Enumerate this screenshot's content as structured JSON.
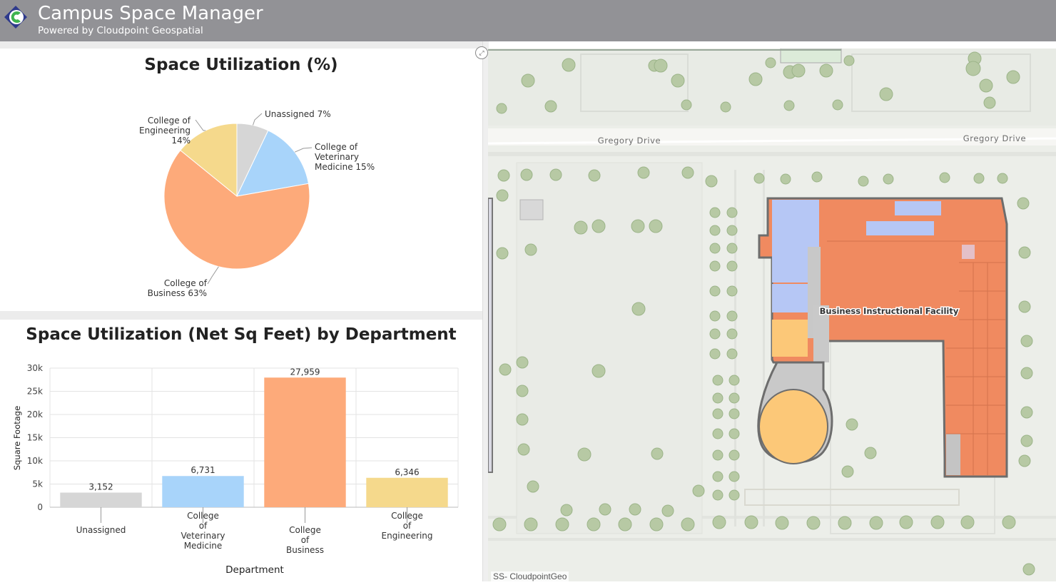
{
  "app": {
    "title": "Campus Space Manager",
    "subtitle": "Powered by Cloudpoint Geospatial"
  },
  "colors": {
    "header": "#929296",
    "unassigned": "#d6d6d6",
    "veterinary": "#a8d4fa",
    "business": "#fdaa7a",
    "engineering": "#f5d98c"
  },
  "chart_data": [
    {
      "type": "pie",
      "title": "Space Utilization (%)",
      "slices": [
        {
          "label": "Unassigned 7%",
          "value": 7,
          "color": "#d6d6d6"
        },
        {
          "label": "College of Veterinary Medicine 15%",
          "value": 15,
          "color": "#a8d4fa"
        },
        {
          "label": "College of Business 63%",
          "value": 63,
          "color": "#fdaa7a"
        },
        {
          "label": "College of Engineering 14%",
          "value": 14,
          "color": "#f5d98c"
        }
      ]
    },
    {
      "type": "bar",
      "title": "Space Utilization (Net Sq Feet) by Department",
      "xlabel": "Department",
      "ylabel": "Square Footage",
      "categories": [
        "Unassigned",
        "College of Veterinary Medicine",
        "College of Business",
        "College of Engineering"
      ],
      "values": [
        3152,
        6731,
        27959,
        6346
      ],
      "value_labels": [
        "3,152",
        "6,731",
        "27,959",
        "6,346"
      ],
      "colors": [
        "#d6d6d6",
        "#a8d4fa",
        "#fdaa7a",
        "#f5d98c"
      ],
      "yticks": [
        "0",
        "5k",
        "10k",
        "15k",
        "20k",
        "25k",
        "30k"
      ],
      "ylim": [
        0,
        30000
      ],
      "grid": true
    }
  ],
  "map": {
    "streets": [
      "Gregory Drive",
      "Gregory Drive"
    ],
    "building_label": "Business Instructional Facility",
    "credit": "SS- CloudpointGeo"
  }
}
